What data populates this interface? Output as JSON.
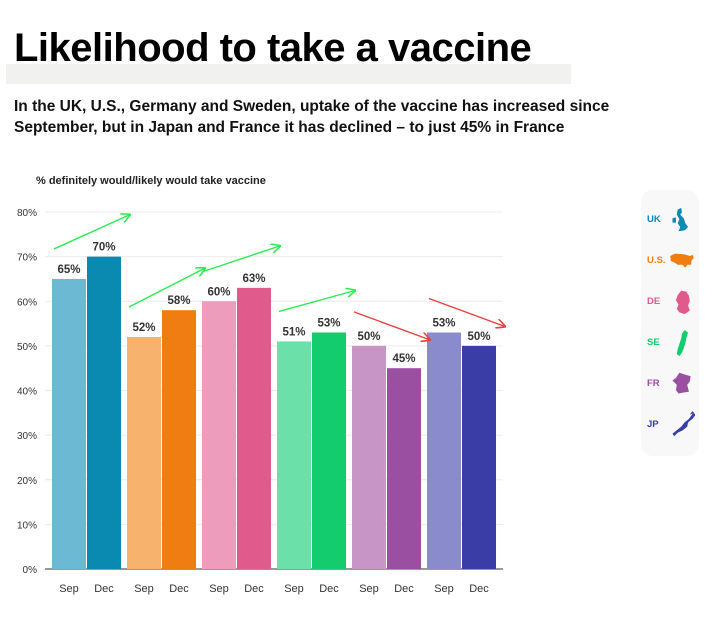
{
  "title": "Likelihood to take a vaccine",
  "subtitle": "In the UK, U.S., Germany and Sweden, uptake of the vaccine has increased since September, but in Japan and France it has declined – to just 45% in France",
  "legend": [
    {
      "code": "UK",
      "color": "#0a8ab0",
      "icon": "uk-map-icon"
    },
    {
      "code": "U.S.",
      "color": "#f07d12",
      "icon": "us-map-icon"
    },
    {
      "code": "DE",
      "color": "#e05a8c",
      "icon": "germany-map-icon"
    },
    {
      "code": "SE",
      "color": "#13cc6e",
      "icon": "sweden-map-icon"
    },
    {
      "code": "FR",
      "color": "#9b4fa0",
      "icon": "france-map-icon"
    },
    {
      "code": "JP",
      "color": "#3a3da6",
      "icon": "japan-map-icon"
    }
  ],
  "chart_data": {
    "type": "bar",
    "ylabel": "% definitely would/likely would take vaccine",
    "ylim": [
      0,
      80
    ],
    "yticks": [
      "0%",
      "10%",
      "20%",
      "30%",
      "40%",
      "50%",
      "60%",
      "70%",
      "80%"
    ],
    "grid": true,
    "legend_position": "right",
    "categories": [
      "Sep",
      "Dec"
    ],
    "series": [
      {
        "name": "UK",
        "values": [
          65,
          70
        ],
        "labels": [
          "65%",
          "70%"
        ],
        "colors": [
          "#6bb9d3",
          "#0a8ab0"
        ],
        "trend": "up",
        "trend_color": "#2eea55"
      },
      {
        "name": "U.S.",
        "values": [
          52,
          58
        ],
        "labels": [
          "52%",
          "58%"
        ],
        "colors": [
          "#f7b36e",
          "#f07d12"
        ],
        "trend": "up",
        "trend_color": "#2eea55"
      },
      {
        "name": "DE",
        "values": [
          60,
          63
        ],
        "labels": [
          "60%",
          "63%"
        ],
        "colors": [
          "#ee9cbb",
          "#e05a8c"
        ],
        "trend": "up",
        "trend_color": "#2eea55"
      },
      {
        "name": "SE",
        "values": [
          51,
          53
        ],
        "labels": [
          "51%",
          "53%"
        ],
        "colors": [
          "#6be0a8",
          "#13cc6e"
        ],
        "trend": "up",
        "trend_color": "#2eea55"
      },
      {
        "name": "FR",
        "values": [
          50,
          45
        ],
        "labels": [
          "50%",
          "45%"
        ],
        "colors": [
          "#c795c6",
          "#9b4fa0"
        ],
        "trend": "down",
        "trend_color": "#ee3d3d"
      },
      {
        "name": "JP",
        "values": [
          53,
          50
        ],
        "labels": [
          "53%",
          "50%"
        ],
        "colors": [
          "#8a8bcc",
          "#3a3da6"
        ],
        "trend": "down",
        "trend_color": "#ee3d3d"
      }
    ]
  }
}
